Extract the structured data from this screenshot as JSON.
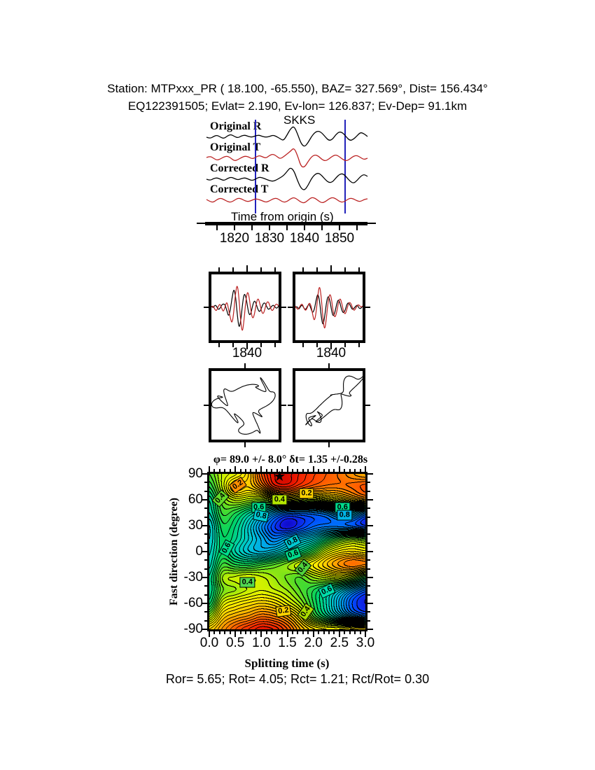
{
  "header": {
    "line1": "Station: MTPxxx_PR (  18.100,  -65.550), BAZ=  327.569°, Dist=  156.434°",
    "line2": "EQ122391505; Evlat=   2.190, Ev-lon= 126.837; Ev-Dep= 91.1km"
  },
  "footer": {
    "text": "Ror= 5.65; Rot= 4.05; Rct= 1.21; Rct/Rot= 0.30"
  },
  "chart_data": [
    {
      "type": "line",
      "name": "seismogram-panel",
      "phase_label": "SKKS",
      "phase_color": "#cc2222",
      "xlabel": "Time from origin (s)",
      "x_tick_labels": [
        "1820",
        "1830",
        "1840",
        "1850"
      ],
      "x_tick_values": [
        1820,
        1830,
        1840,
        1850
      ],
      "x_minor_tick_step": 5,
      "xlim": [
        1812,
        1858
      ],
      "window_markers": {
        "color": "#2222bb",
        "t1": 1826.0,
        "t2": 1851.6
      },
      "t0": 1812,
      "dt": 1,
      "series": [
        {
          "name": "Original R",
          "color": "#000000",
          "values": [
            0,
            -2,
            1,
            3,
            0,
            -2,
            2,
            4,
            1,
            -1,
            2,
            3,
            1,
            0,
            2,
            3,
            1,
            0,
            1,
            3,
            1,
            -2,
            -5,
            3,
            12,
            16,
            5,
            -9,
            -14,
            -8,
            1,
            7,
            9,
            6,
            0,
            -5,
            -3,
            4,
            8,
            6,
            0,
            -5,
            -3,
            2,
            7,
            5,
            1
          ]
        },
        {
          "name": "Original T",
          "color": "#bb2222",
          "values": [
            1,
            3,
            0,
            -3,
            -1,
            2,
            3,
            0,
            -4,
            -2,
            1,
            3,
            2,
            -1,
            1,
            4,
            2,
            0,
            4,
            6,
            3,
            -1,
            2,
            6,
            10,
            15,
            4,
            -12,
            -13,
            -5,
            2,
            5,
            3,
            -2,
            -4,
            -1,
            3,
            5,
            2,
            -2,
            -4,
            -1,
            3,
            4,
            1,
            -2,
            0
          ]
        },
        {
          "name": "Corrected R",
          "color": "#000000",
          "values": [
            0,
            -2,
            1,
            2,
            0,
            -2,
            1,
            3,
            1,
            -1,
            1,
            2,
            0,
            -2,
            0,
            3,
            2,
            0,
            -2,
            -3,
            -1,
            2,
            5,
            11,
            17,
            12,
            -2,
            -13,
            -16,
            -9,
            1,
            7,
            9,
            5,
            -1,
            -5,
            -4,
            2,
            7,
            8,
            3,
            -3,
            -6,
            -2,
            4,
            7,
            4
          ]
        },
        {
          "name": "Corrected T",
          "color": "#bb2222",
          "values": [
            1,
            -2,
            -3,
            1,
            3,
            1,
            -2,
            -3,
            0,
            3,
            2,
            -1,
            -2,
            0,
            2,
            1,
            -1,
            -3,
            -1,
            2,
            3,
            0,
            -3,
            -2,
            2,
            4,
            1,
            -3,
            -4,
            0,
            4,
            3,
            -1,
            -4,
            -2,
            2,
            4,
            2,
            -2,
            -3,
            0,
            3,
            2,
            -1,
            -2,
            1,
            2
          ]
        }
      ]
    },
    {
      "type": "line",
      "name": "fast-slow-overlay-1",
      "x_tick_label": "1840",
      "series": [
        {
          "name": "component-1",
          "color": "#000000",
          "values": [
            1,
            -1,
            2,
            1,
            -2,
            -1,
            2,
            3,
            2,
            -3,
            -8,
            -2,
            8,
            16,
            10,
            -6,
            -18,
            -12,
            2,
            12,
            9,
            0,
            -7,
            -5,
            2,
            6,
            3,
            -2,
            -4,
            -1,
            3,
            4,
            1,
            -2,
            -1,
            1,
            2,
            0,
            -1,
            1
          ]
        },
        {
          "name": "component-2",
          "color": "#bb2222",
          "values": [
            0,
            2,
            -2,
            -3,
            1,
            3,
            -1,
            -4,
            1,
            5,
            -2,
            -9,
            -14,
            -4,
            12,
            20,
            8,
            -12,
            -22,
            -10,
            6,
            14,
            8,
            -4,
            -10,
            -6,
            3,
            8,
            4,
            -3,
            -6,
            -2,
            4,
            5,
            1,
            -3,
            -2,
            2,
            3,
            1
          ]
        }
      ]
    },
    {
      "type": "line",
      "name": "fast-slow-overlay-2",
      "x_tick_label": "1840",
      "series": [
        {
          "name": "component-1",
          "color": "#000000",
          "values": [
            0,
            1,
            -2,
            1,
            2,
            -1,
            -2,
            1,
            3,
            -1,
            -5,
            -2,
            6,
            12,
            6,
            -8,
            -16,
            -8,
            4,
            10,
            6,
            -3,
            -8,
            -4,
            3,
            7,
            3,
            -3,
            -5,
            -2,
            3,
            4,
            1,
            -2,
            -1,
            1,
            2,
            -1,
            -1,
            1
          ]
        },
        {
          "name": "component-2",
          "color": "#bb2222",
          "values": [
            1,
            -2,
            -1,
            2,
            3,
            -1,
            -3,
            0,
            4,
            2,
            -6,
            -12,
            -5,
            10,
            19,
            9,
            -10,
            -20,
            -9,
            5,
            12,
            7,
            -5,
            -9,
            -4,
            4,
            8,
            3,
            -4,
            -6,
            -1,
            4,
            4,
            0,
            -3,
            -1,
            2,
            2,
            0,
            1
          ]
        }
      ]
    },
    {
      "type": "scatter",
      "name": "particle-motion-original",
      "scale": 0.75,
      "harmonics": {
        "x": [
          [
            46,
            1,
            0.0
          ],
          [
            10,
            2,
            2.1
          ],
          [
            9,
            5,
            0.7
          ],
          [
            6,
            9,
            1.9
          ],
          [
            4,
            13,
            0.4
          ]
        ],
        "y": [
          [
            40,
            1,
            1.5
          ],
          [
            11,
            2,
            0.9
          ],
          [
            8,
            5,
            2.6
          ],
          [
            6,
            9,
            0.2
          ],
          [
            4,
            13,
            2.8
          ]
        ]
      }
    },
    {
      "type": "scatter",
      "name": "particle-motion-corrected",
      "scale": 0.75,
      "harmonics": {
        "x": [
          [
            44,
            1,
            0.0
          ],
          [
            12,
            2,
            0.6
          ],
          [
            8,
            5,
            1.2
          ],
          [
            5,
            9,
            2.2
          ],
          [
            3,
            13,
            1.0
          ]
        ],
        "y": [
          [
            38,
            1,
            0.35
          ],
          [
            12,
            2,
            1.0
          ],
          [
            8,
            5,
            2.0
          ],
          [
            5,
            9,
            0.6
          ],
          [
            3,
            13,
            2.4
          ]
        ]
      }
    },
    {
      "type": "heatmap",
      "name": "splitting-energy-map",
      "title": "φ= 89.0 +/- 8.0° δt= 1.35 +/-0.28s",
      "xlabel": "Splitting time (s)",
      "ylabel": "Fast direction (degree)",
      "xlim": [
        0.0,
        3.0
      ],
      "ylim": [
        -90,
        90
      ],
      "x_ticks": [
        "0.0",
        "0.5",
        "1.0",
        "1.5",
        "2.0",
        "2.5",
        "3.0"
      ],
      "y_ticks": [
        "90",
        "60",
        "30",
        "0",
        "-30",
        "-60",
        "-90"
      ],
      "x_major": 0.5,
      "x_minor": 0.1,
      "y_major": 30,
      "y_minor": 10,
      "contour_interval": 0.025,
      "best_fit": {
        "fast_direction_deg": 89.0,
        "fast_direction_err_deg": 8.0,
        "delay_time_s": 1.35,
        "delay_time_err_s": 0.28,
        "marker": "star",
        "marker_xy": [
          1.35,
          87
        ]
      },
      "grid": {
        "x0": 0.0,
        "dx": 0.25,
        "ytop": 90,
        "dy": -15,
        "values": [
          [
            0.5,
            0.42,
            0.38,
            0.3,
            0.15,
            0.05,
            0.04,
            0.08,
            0.12,
            0.15,
            0.18,
            0.22,
            0.25
          ],
          [
            0.55,
            0.42,
            0.28,
            0.3,
            0.22,
            0.1,
            0.08,
            0.13,
            0.17,
            0.19,
            0.19,
            0.17,
            0.14
          ],
          [
            0.62,
            0.48,
            0.42,
            0.44,
            0.46,
            0.42,
            0.4,
            0.42,
            0.44,
            0.4,
            0.36,
            0.3,
            0.26
          ],
          [
            0.65,
            0.52,
            0.55,
            0.62,
            0.7,
            0.8,
            0.86,
            0.86,
            0.85,
            0.82,
            0.74,
            0.72,
            0.82
          ],
          [
            0.7,
            0.56,
            0.6,
            0.7,
            0.82,
            0.92,
            0.97,
            0.93,
            0.88,
            0.86,
            0.86,
            0.88,
            0.92
          ],
          [
            0.7,
            0.58,
            0.62,
            0.7,
            0.78,
            0.85,
            0.8,
            0.75,
            0.7,
            0.6,
            0.52,
            0.48,
            0.5
          ],
          [
            0.68,
            0.58,
            0.65,
            0.72,
            0.75,
            0.72,
            0.66,
            0.6,
            0.52,
            0.4,
            0.34,
            0.32,
            0.34
          ],
          [
            0.66,
            0.52,
            0.55,
            0.56,
            0.53,
            0.5,
            0.46,
            0.4,
            0.35,
            0.28,
            0.22,
            0.18,
            0.2
          ],
          [
            0.62,
            0.45,
            0.42,
            0.4,
            0.42,
            0.45,
            0.48,
            0.5,
            0.45,
            0.42,
            0.4,
            0.45,
            0.55
          ],
          [
            0.62,
            0.48,
            0.45,
            0.42,
            0.4,
            0.42,
            0.45,
            0.5,
            0.55,
            0.62,
            0.7,
            0.8,
            0.88
          ],
          [
            0.58,
            0.4,
            0.35,
            0.32,
            0.3,
            0.32,
            0.38,
            0.45,
            0.55,
            0.65,
            0.78,
            0.9,
            0.95
          ],
          [
            0.45,
            0.3,
            0.25,
            0.22,
            0.18,
            0.2,
            0.25,
            0.35,
            0.5,
            0.6,
            0.7,
            0.8,
            0.85
          ],
          [
            0.3,
            0.22,
            0.15,
            0.1,
            0.06,
            0.08,
            0.15,
            0.25,
            0.32,
            0.35,
            0.35,
            0.32,
            0.3
          ]
        ]
      },
      "colormap": [
        [
          0.0,
          "#be0000"
        ],
        [
          0.06,
          "#e81400"
        ],
        [
          0.12,
          "#ff3c00"
        ],
        [
          0.2,
          "#ff8200"
        ],
        [
          0.28,
          "#ffc800"
        ],
        [
          0.35,
          "#fff000"
        ],
        [
          0.42,
          "#c8f000"
        ],
        [
          0.5,
          "#50dc28"
        ],
        [
          0.58,
          "#00d264"
        ],
        [
          0.66,
          "#00d2b4"
        ],
        [
          0.74,
          "#00bedc"
        ],
        [
          0.82,
          "#0096f0"
        ],
        [
          0.9,
          "#0050ff"
        ],
        [
          0.96,
          "#1414dc"
        ],
        [
          1.0,
          "#0000aa"
        ]
      ],
      "contour_labels": [
        {
          "v": "0.2",
          "x": 0.55,
          "y": 77,
          "bg": "#ff9000",
          "rot": -35
        },
        {
          "v": "0.4",
          "x": 0.22,
          "y": 62,
          "bg": "#64dc28",
          "rot": -48
        },
        {
          "v": "0.2",
          "x": 1.87,
          "y": 67,
          "bg": "#ffd200",
          "rot": 0
        },
        {
          "v": "0.4",
          "x": 1.35,
          "y": 60,
          "bg": "#b4e600",
          "rot": 0
        },
        {
          "v": "0.6",
          "x": 0.95,
          "y": 51,
          "bg": "#00dc8c",
          "rot": 0
        },
        {
          "v": "0.8",
          "x": 1.0,
          "y": 41,
          "bg": "#00c8d2",
          "rot": 12
        },
        {
          "v": "0.6",
          "x": 2.56,
          "y": 51,
          "bg": "#00dc8c",
          "rot": 0
        },
        {
          "v": "0.8",
          "x": 2.6,
          "y": 42,
          "bg": "#00b4e6",
          "rot": 0
        },
        {
          "v": "0.8",
          "x": 1.6,
          "y": 11,
          "bg": "#00c8d2",
          "rot": -28
        },
        {
          "v": "0.6",
          "x": 1.62,
          "y": -3,
          "bg": "#00dc8c",
          "rot": -20
        },
        {
          "v": "0.6",
          "x": 0.33,
          "y": 4,
          "bg": "#00dc8c",
          "rot": -62
        },
        {
          "v": "0.4",
          "x": 1.8,
          "y": -19,
          "bg": "#50d23c",
          "rot": -50
        },
        {
          "v": "0.4",
          "x": 0.73,
          "y": -36,
          "bg": "#50d850",
          "rot": 0
        },
        {
          "v": "0.6",
          "x": 2.26,
          "y": -45,
          "bg": "#00dcaa",
          "rot": -25
        },
        {
          "v": "0.2",
          "x": 1.42,
          "y": -69,
          "bg": "#ffd200",
          "rot": -8
        },
        {
          "v": "0.4",
          "x": 1.86,
          "y": -70,
          "bg": "#aadc00",
          "rot": -55
        }
      ]
    }
  ]
}
